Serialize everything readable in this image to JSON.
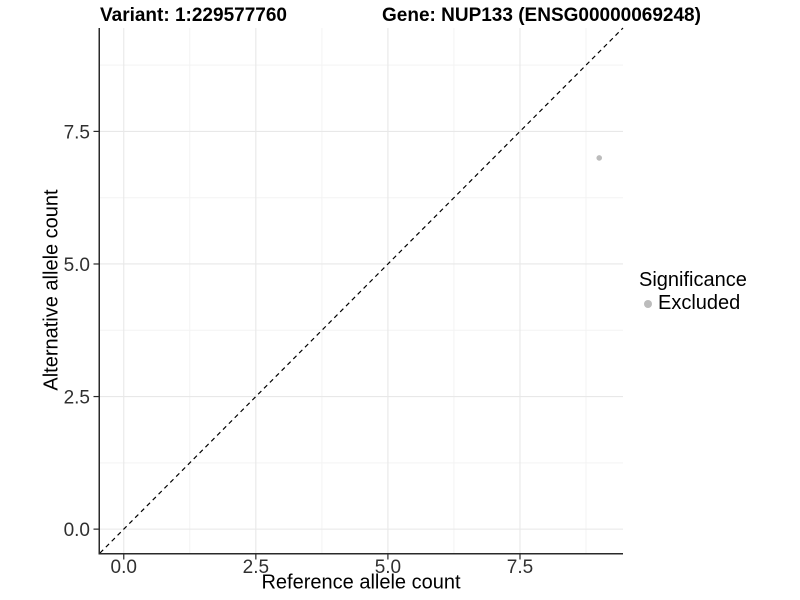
{
  "chart_data": {
    "type": "scatter",
    "title_left": "Variant: 1:229577760",
    "title_right": "Gene: NUP133 (ENSG00000069248)",
    "xlabel": "Reference allele count",
    "ylabel": "Alternative allele count",
    "xlim": [
      -0.45,
      9.45
    ],
    "ylim": [
      -0.45,
      9.45
    ],
    "x_major_ticks": [
      0,
      2.5,
      5,
      7.5
    ],
    "y_major_ticks": [
      0,
      2.5,
      5,
      7.5
    ],
    "x_minor_ticks": [
      1.25,
      3.75,
      6.25,
      8.75
    ],
    "y_minor_ticks": [
      1.25,
      3.75,
      6.25,
      8.75
    ],
    "tick_format_decimals": 1,
    "grid": "major+minor",
    "series": [
      {
        "name": "Excluded",
        "color": "#bcbcbc",
        "points": [
          {
            "x": 9,
            "y": 7
          }
        ]
      }
    ],
    "reference_line": {
      "kind": "identity y=x",
      "style": "dashed",
      "color": "#000000"
    },
    "legend": {
      "title": "Significance",
      "position": "right",
      "items": [
        {
          "label": "Excluded",
          "marker_color": "#bcbcbc"
        }
      ]
    }
  },
  "colors": {
    "background": "#ffffff",
    "axis_line": "#2a2a2a",
    "tick_mark": "#2a2a2a",
    "tick_label": "#303030",
    "grid_major": "#e8e8e8",
    "grid_minor": "#f3f3f3",
    "point": "#bcbcbc",
    "identity_line": "#000000"
  }
}
